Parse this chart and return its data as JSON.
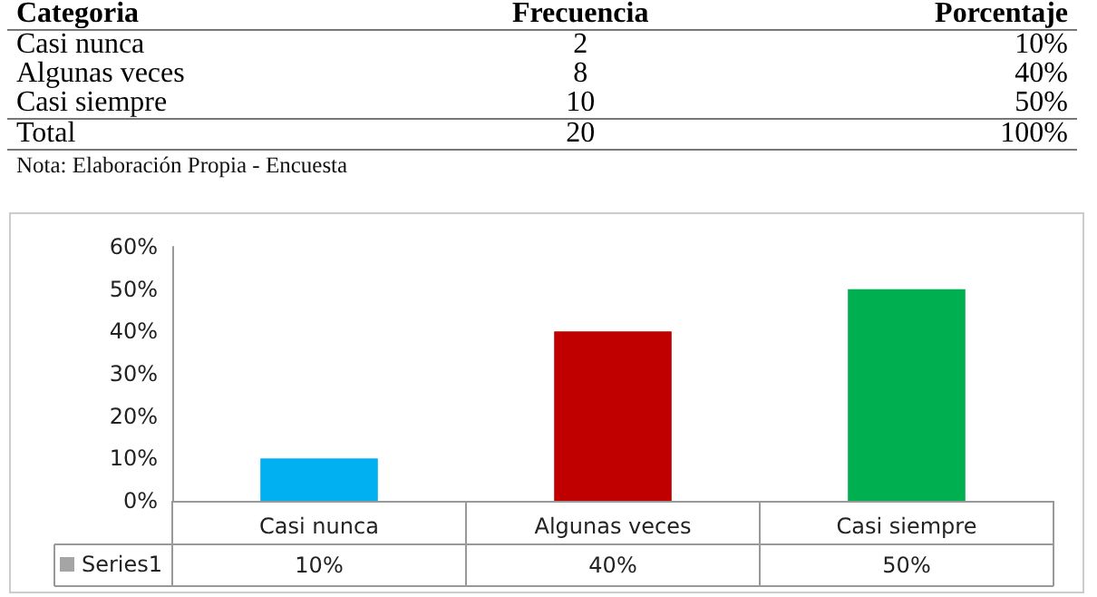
{
  "chart_data": [
    {
      "type": "other",
      "categories": [
        "Categoria",
        "Frecuencia",
        "Porcentaje"
      ],
      "annotations": [
        "Casi nunca",
        "2",
        "10%",
        "Algunas veces",
        "8",
        "40%",
        "Casi siempre",
        "10",
        "50%",
        "Total",
        "20",
        "100%",
        "Nota: Elaboración Propia - Encuesta"
      ]
    },
    {
      "type": "bar",
      "categories": [
        "Casi nunca",
        "Algunas veces",
        "Casi siempre"
      ],
      "series": [
        {
          "name": "Series1",
          "color": "#a5a5a5",
          "colors": [
            "#00b0f0",
            "#c00000",
            "#00b050"
          ],
          "values": [
            10,
            40,
            50
          ],
          "value_labels": [
            "10%",
            "40%",
            "50%"
          ]
        }
      ],
      "ylim": [
        0,
        60
      ],
      "yticks": [
        {
          "value": 0,
          "label": "0%"
        },
        {
          "value": 10,
          "label": "10%"
        },
        {
          "value": 20,
          "label": "20%"
        },
        {
          "value": 30,
          "label": "30%"
        },
        {
          "value": 40,
          "label": "40%"
        },
        {
          "value": 50,
          "label": "50%"
        },
        {
          "value": 60,
          "label": "60%"
        }
      ],
      "legend": "bottom left"
    }
  ]
}
